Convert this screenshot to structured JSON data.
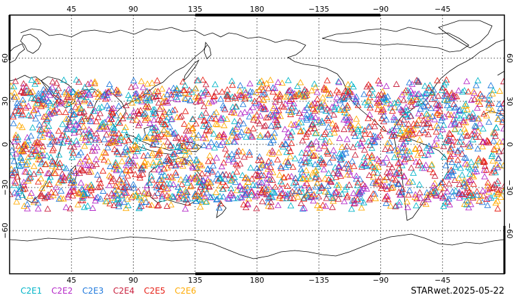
{
  "map": {
    "projection": "plate-carree",
    "lon_range": [
      0,
      360
    ],
    "lat_range": [
      -90,
      90
    ],
    "grid": "dotted",
    "lon_ticks": [
      {
        "value": 45,
        "label": "45"
      },
      {
        "value": 90,
        "label": "90"
      },
      {
        "value": 135,
        "label": "135"
      },
      {
        "value": 180,
        "label": "180"
      },
      {
        "value": 225,
        "label": "−135"
      },
      {
        "value": 270,
        "label": "−90"
      },
      {
        "value": 315,
        "label": "−45"
      }
    ],
    "lat_ticks": [
      {
        "value": 60,
        "label": "60"
      },
      {
        "value": 30,
        "label": "30"
      },
      {
        "value": 0,
        "label": "0"
      },
      {
        "value": -30,
        "label": "−30"
      },
      {
        "value": -60,
        "label": "−60"
      }
    ],
    "coastline_color": "#000000",
    "marker": "open-triangle",
    "observation_lat_band": [
      -45,
      45
    ]
  },
  "legend": [
    {
      "label": "C2E1",
      "color": "#00b4c8"
    },
    {
      "label": "C2E2",
      "color": "#b428c8"
    },
    {
      "label": "C2E3",
      "color": "#1e78dc"
    },
    {
      "label": "C2E4",
      "color": "#c81e3c"
    },
    {
      "label": "C2E5",
      "color": "#e61e14"
    },
    {
      "label": "C2E6",
      "color": "#ffaa00"
    }
  ],
  "footer": {
    "stamp": "STARwet.2025-05-22"
  }
}
